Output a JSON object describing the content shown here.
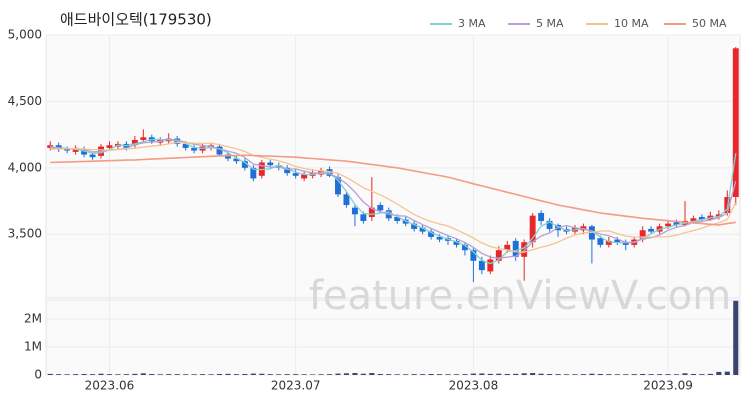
{
  "chart_data": {
    "type": "candlestick",
    "title": "애드바이오텍(179530)",
    "watermark": "feature.enViewV.com",
    "up_color": "#e8262b",
    "down_color": "#1e6fd9",
    "categories": [
      null,
      null,
      null,
      null,
      null,
      null,
      null,
      "2023.06",
      null,
      null,
      null,
      null,
      null,
      null,
      null,
      null,
      null,
      null,
      null,
      null,
      null,
      null,
      null,
      null,
      null,
      null,
      null,
      null,
      null,
      "2023.07",
      null,
      null,
      null,
      null,
      null,
      null,
      null,
      null,
      null,
      null,
      null,
      null,
      null,
      null,
      null,
      null,
      null,
      null,
      null,
      null,
      "2023.08",
      null,
      null,
      null,
      null,
      null,
      null,
      null,
      null,
      null,
      null,
      null,
      null,
      null,
      null,
      null,
      null,
      null,
      null,
      null,
      null,
      null,
      null,
      "2023.09",
      null,
      null,
      null,
      null,
      null,
      null,
      null,
      null
    ],
    "open": [
      4150,
      4170,
      4140,
      4120,
      4140,
      4100,
      4090,
      4150,
      4160,
      4180,
      4170,
      4210,
      4230,
      4190,
      4200,
      4220,
      4180,
      4150,
      4130,
      4150,
      4160,
      4100,
      4070,
      4050,
      4000,
      3940,
      4040,
      4020,
      4000,
      3960,
      3920,
      3940,
      3950,
      3990,
      3930,
      3800,
      3700,
      3650,
      3630,
      3720,
      3680,
      3630,
      3610,
      3580,
      3550,
      3520,
      3480,
      3470,
      3450,
      3420,
      3380,
      3300,
      3220,
      3300,
      3380,
      3450,
      3330,
      3440,
      3660,
      3600,
      3570,
      3540,
      3520,
      3530,
      3560,
      3470,
      3420,
      3460,
      3440,
      3420,
      3460,
      3540,
      3520,
      3560,
      3590,
      3570,
      3600,
      3630,
      3610,
      3630,
      3660,
      3780
    ],
    "high": [
      4200,
      4190,
      4160,
      4170,
      4160,
      4120,
      4180,
      4200,
      4200,
      4200,
      4240,
      4290,
      4250,
      4230,
      4260,
      4240,
      4200,
      4170,
      4180,
      4190,
      4180,
      4120,
      4090,
      4070,
      4020,
      4060,
      4060,
      4040,
      4020,
      3990,
      3980,
      3990,
      4000,
      4010,
      3950,
      3820,
      3720,
      3670,
      3930,
      3740,
      3700,
      3650,
      3630,
      3600,
      3570,
      3540,
      3500,
      3490,
      3470,
      3440,
      3400,
      3330,
      3340,
      3410,
      3450,
      3470,
      3460,
      3660,
      3680,
      3620,
      3580,
      3560,
      3570,
      3580,
      3570,
      3490,
      3480,
      3480,
      3460,
      3480,
      3560,
      3560,
      3580,
      3600,
      3610,
      3750,
      3640,
      3650,
      3670,
      3680,
      3830,
      4910
    ],
    "low": [
      4130,
      4120,
      4110,
      4100,
      4080,
      4060,
      4070,
      4130,
      4140,
      4130,
      4150,
      4190,
      4180,
      4170,
      4180,
      4160,
      4130,
      4110,
      4110,
      4130,
      4090,
      4050,
      4030,
      3980,
      3900,
      3920,
      4000,
      3980,
      3940,
      3920,
      3900,
      3920,
      3930,
      3930,
      3780,
      3700,
      3560,
      3580,
      3600,
      3660,
      3600,
      3580,
      3560,
      3520,
      3500,
      3460,
      3440,
      3420,
      3400,
      3340,
      3140,
      3200,
      3200,
      3280,
      3360,
      3300,
      3150,
      3400,
      3570,
      3520,
      3480,
      3500,
      3500,
      3500,
      3280,
      3400,
      3400,
      3420,
      3380,
      3400,
      3440,
      3500,
      3500,
      3540,
      3550,
      3560,
      3580,
      3590,
      3600,
      3610,
      3640,
      3720
    ],
    "close": [
      4170,
      4140,
      4130,
      4150,
      4100,
      4080,
      4160,
      4170,
      4180,
      4150,
      4210,
      4230,
      4200,
      4210,
      4220,
      4180,
      4150,
      4130,
      4160,
      4170,
      4100,
      4070,
      4050,
      4000,
      3920,
      4040,
      4020,
      4000,
      3960,
      3940,
      3950,
      3960,
      3980,
      3940,
      3800,
      3720,
      3650,
      3600,
      3700,
      3680,
      3620,
      3600,
      3580,
      3540,
      3520,
      3480,
      3460,
      3450,
      3420,
      3380,
      3300,
      3230,
      3310,
      3380,
      3420,
      3330,
      3440,
      3640,
      3600,
      3540,
      3530,
      3520,
      3550,
      3560,
      3460,
      3420,
      3450,
      3440,
      3420,
      3460,
      3530,
      3520,
      3560,
      3580,
      3570,
      3600,
      3620,
      3610,
      3640,
      3650,
      3780,
      4900
    ],
    "ylim": [
      3020,
      5000
    ],
    "yticks": [
      {
        "value": 3500,
        "label": "3,500"
      },
      {
        "value": 4000,
        "label": "4,000"
      },
      {
        "value": 4500,
        "label": "4,500"
      },
      {
        "value": 5000,
        "label": "5,000"
      }
    ],
    "series": [
      {
        "name": "3 MA",
        "color": "#7fd1cf",
        "values": [
          4160,
          4150,
          4147,
          4140,
          4127,
          4110,
          4113,
          4137,
          4170,
          4167,
          4180,
          4197,
          4213,
          4213,
          4210,
          4203,
          4183,
          4153,
          4147,
          4153,
          4143,
          4113,
          4073,
          4040,
          3990,
          3987,
          3993,
          4020,
          3993,
          3967,
          3950,
          3950,
          3963,
          3960,
          3907,
          3820,
          3723,
          3657,
          3650,
          3660,
          3667,
          3633,
          3600,
          3573,
          3547,
          3513,
          3487,
          3463,
          3443,
          3417,
          3367,
          3303,
          3280,
          3307,
          3370,
          3377,
          3397,
          3470,
          3560,
          3593,
          3557,
          3530,
          3533,
          3543,
          3523,
          3480,
          3443,
          3437,
          3437,
          3440,
          3470,
          3503,
          3537,
          3553,
          3570,
          3583,
          3597,
          3610,
          3623,
          3633,
          3690,
          4110
        ]
      },
      {
        "name": "5 MA",
        "color": "#b7a2d4",
        "values": [
          4150,
          4150,
          4145,
          4145,
          4138,
          4120,
          4124,
          4132,
          4138,
          4148,
          4174,
          4188,
          4194,
          4200,
          4214,
          4208,
          4192,
          4178,
          4168,
          4162,
          4142,
          4126,
          4110,
          4078,
          4028,
          4016,
          4006,
          4006,
          3988,
          3992,
          3974,
          3962,
          3958,
          3956,
          3926,
          3880,
          3818,
          3742,
          3694,
          3670,
          3650,
          3640,
          3636,
          3604,
          3572,
          3544,
          3516,
          3490,
          3466,
          3438,
          3402,
          3356,
          3328,
          3320,
          3328,
          3334,
          3376,
          3442,
          3486,
          3510,
          3550,
          3566,
          3548,
          3540,
          3524,
          3502,
          3488,
          3466,
          3438,
          3438,
          3464,
          3474,
          3494,
          3530,
          3552,
          3566,
          3590,
          3596,
          3608,
          3624,
          3660,
          3900
        ]
      },
      {
        "name": "10 MA",
        "color": "#f3c58f",
        "values": [
          4140,
          4142,
          4143,
          4144,
          4142,
          4138,
          4135,
          4133,
          4138,
          4143,
          4147,
          4156,
          4163,
          4169,
          4181,
          4191,
          4190,
          4186,
          4184,
          4186,
          4175,
          4159,
          4144,
          4123,
          4093,
          4079,
          4066,
          4053,
          4033,
          4010,
          3995,
          3984,
          3977,
          3971,
          3959,
          3927,
          3890,
          3850,
          3823,
          3797,
          3764,
          3728,
          3688,
          3648,
          3620,
          3596,
          3577,
          3562,
          3534,
          3504,
          3472,
          3435,
          3408,
          3392,
          3382,
          3367,
          3365,
          3384,
          3402,
          3418,
          3441,
          3470,
          3494,
          3511,
          3515,
          3524,
          3525,
          3505,
          3487,
          3479,
          3479,
          3479,
          3480,
          3482,
          3493,
          3511,
          3528,
          3545,
          3567,
          3586,
          3611,
          3737
        ]
      },
      {
        "name": "50 MA",
        "color": "#f59a84",
        "values": [
          4040,
          4042,
          4044,
          4046,
          4048,
          4050,
          4052,
          4054,
          4056,
          4058,
          4060,
          4063,
          4066,
          4069,
          4072,
          4075,
          4078,
          4081,
          4084,
          4087,
          4090,
          4092,
          4093,
          4095,
          4093,
          4090,
          4088,
          4085,
          4083,
          4080,
          4075,
          4070,
          4065,
          4060,
          4055,
          4050,
          4042,
          4033,
          4025,
          4017,
          4008,
          4000,
          3988,
          3977,
          3965,
          3953,
          3942,
          3930,
          3913,
          3897,
          3880,
          3864,
          3848,
          3832,
          3816,
          3800,
          3784,
          3768,
          3752,
          3736,
          3720,
          3708,
          3696,
          3684,
          3672,
          3660,
          3652,
          3644,
          3636,
          3628,
          3620,
          3614,
          3608,
          3602,
          3596,
          3590,
          3585,
          3580,
          3575,
          3570,
          3580,
          3590
        ]
      }
    ],
    "volume": {
      "color": "#3d4270",
      "ylim": [
        0,
        2680000
      ],
      "yticks": [
        0,
        {
          "value": 1000000,
          "label": "1M"
        },
        {
          "value": 2000000,
          "label": "2M"
        }
      ],
      "values": [
        40000,
        30000,
        25000,
        30000,
        35000,
        30000,
        45000,
        30000,
        25000,
        30000,
        40000,
        60000,
        35000,
        25000,
        30000,
        30000,
        25000,
        25000,
        30000,
        25000,
        35000,
        40000,
        30000,
        35000,
        50000,
        45000,
        30000,
        25000,
        30000,
        30000,
        25000,
        20000,
        25000,
        30000,
        50000,
        60000,
        70000,
        45000,
        70000,
        35000,
        30000,
        25000,
        25000,
        30000,
        30000,
        35000,
        30000,
        25000,
        25000,
        30000,
        50000,
        55000,
        40000,
        45000,
        35000,
        40000,
        60000,
        70000,
        45000,
        35000,
        30000,
        25000,
        25000,
        30000,
        45000,
        35000,
        30000,
        25000,
        25000,
        30000,
        35000,
        30000,
        30000,
        30000,
        25000,
        60000,
        35000,
        30000,
        40000,
        110000,
        120000,
        2650000
      ]
    }
  }
}
